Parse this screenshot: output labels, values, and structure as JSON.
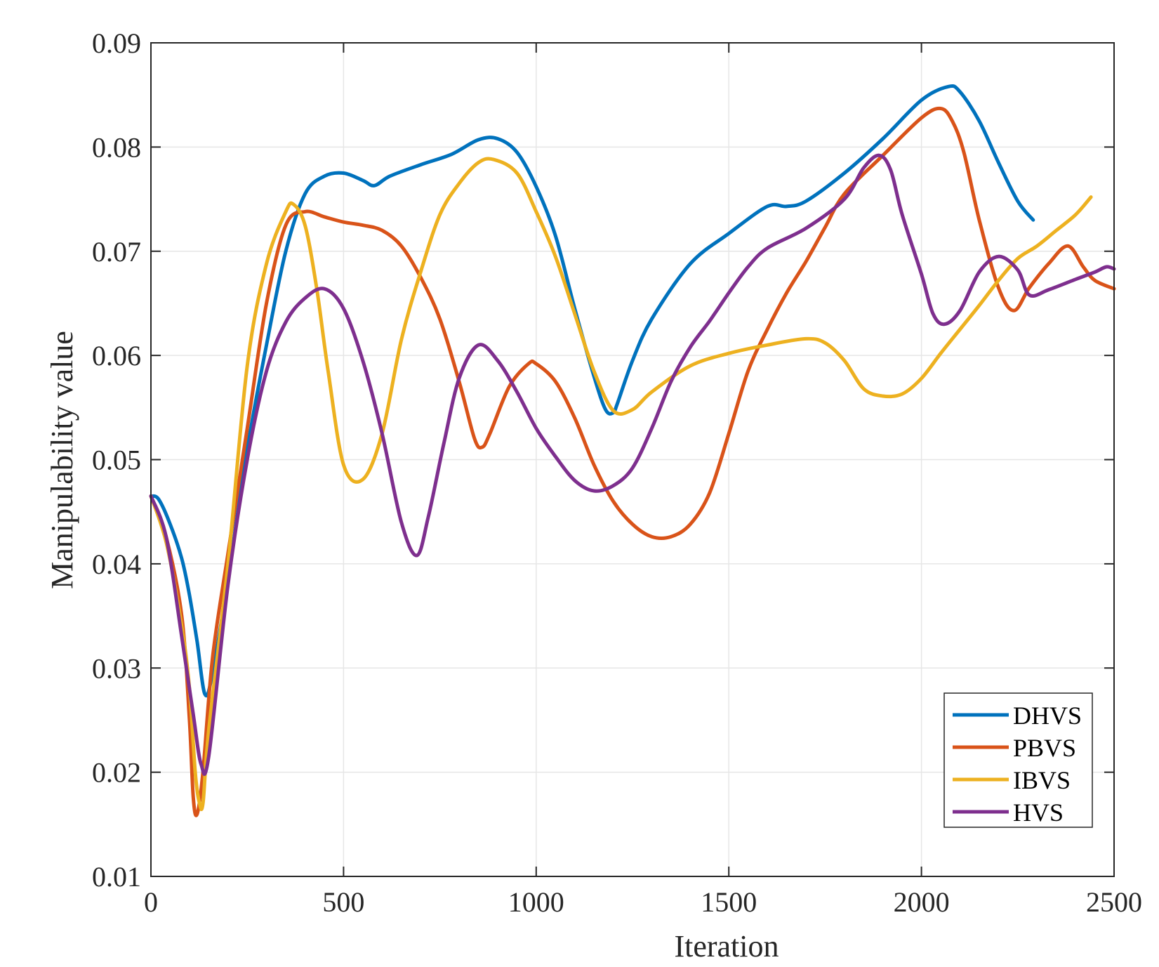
{
  "chart_data": {
    "type": "line",
    "title": "",
    "xlabel": "Iteration",
    "ylabel": "Manipulability value",
    "xlim": [
      0,
      2500
    ],
    "ylim": [
      0.01,
      0.09
    ],
    "xticks": [
      0,
      500,
      1000,
      1500,
      2000,
      2500
    ],
    "yticks": [
      0.01,
      0.02,
      0.03,
      0.04,
      0.05,
      0.06,
      0.07,
      0.08,
      0.09
    ],
    "xtick_labels": [
      "0",
      "500",
      "1000",
      "1500",
      "2000",
      "2500"
    ],
    "ytick_labels": [
      "0.01",
      "0.02",
      "0.03",
      "0.04",
      "0.05",
      "0.06",
      "0.07",
      "0.08",
      "0.09"
    ],
    "grid": true,
    "legend_position": "bottom-right",
    "series": [
      {
        "name": "DHVS",
        "color": "#0072BD",
        "points": [
          [
            0,
            0.0465
          ],
          [
            20,
            0.0462
          ],
          [
            50,
            0.0438
          ],
          [
            80,
            0.0405
          ],
          [
            100,
            0.037
          ],
          [
            120,
            0.0325
          ],
          [
            140,
            0.0275
          ],
          [
            160,
            0.0295
          ],
          [
            200,
            0.0385
          ],
          [
            250,
            0.051
          ],
          [
            300,
            0.061
          ],
          [
            350,
            0.07
          ],
          [
            400,
            0.0755
          ],
          [
            450,
            0.0772
          ],
          [
            500,
            0.0775
          ],
          [
            550,
            0.0768
          ],
          [
            580,
            0.0763
          ],
          [
            620,
            0.0772
          ],
          [
            700,
            0.0783
          ],
          [
            780,
            0.0793
          ],
          [
            850,
            0.0807
          ],
          [
            900,
            0.0808
          ],
          [
            950,
            0.0795
          ],
          [
            1000,
            0.0762
          ],
          [
            1050,
            0.0715
          ],
          [
            1100,
            0.0645
          ],
          [
            1150,
            0.058
          ],
          [
            1180,
            0.0548
          ],
          [
            1200,
            0.0545
          ],
          [
            1210,
            0.0553
          ],
          [
            1250,
            0.0595
          ],
          [
            1300,
            0.0635
          ],
          [
            1400,
            0.0688
          ],
          [
            1500,
            0.0717
          ],
          [
            1600,
            0.0743
          ],
          [
            1650,
            0.0743
          ],
          [
            1700,
            0.0748
          ],
          [
            1800,
            0.0775
          ],
          [
            1900,
            0.0808
          ],
          [
            2000,
            0.0845
          ],
          [
            2070,
            0.0858
          ],
          [
            2100,
            0.0853
          ],
          [
            2150,
            0.0825
          ],
          [
            2200,
            0.0785
          ],
          [
            2250,
            0.0748
          ],
          [
            2290,
            0.073
          ]
        ]
      },
      {
        "name": "PBVS",
        "color": "#D95319",
        "points": [
          [
            0,
            0.0465
          ],
          [
            40,
            0.0425
          ],
          [
            80,
            0.035
          ],
          [
            100,
            0.025
          ],
          [
            110,
            0.0175
          ],
          [
            120,
            0.016
          ],
          [
            135,
            0.02
          ],
          [
            160,
            0.031
          ],
          [
            200,
            0.041
          ],
          [
            250,
            0.053
          ],
          [
            300,
            0.065
          ],
          [
            350,
            0.0725
          ],
          [
            400,
            0.0738
          ],
          [
            450,
            0.0733
          ],
          [
            500,
            0.0728
          ],
          [
            550,
            0.0725
          ],
          [
            600,
            0.072
          ],
          [
            650,
            0.0705
          ],
          [
            700,
            0.0675
          ],
          [
            750,
            0.0635
          ],
          [
            800,
            0.0575
          ],
          [
            840,
            0.052
          ],
          [
            860,
            0.0512
          ],
          [
            880,
            0.0525
          ],
          [
            930,
            0.057
          ],
          [
            980,
            0.0592
          ],
          [
            1000,
            0.0592
          ],
          [
            1050,
            0.0575
          ],
          [
            1100,
            0.054
          ],
          [
            1150,
            0.0495
          ],
          [
            1200,
            0.046
          ],
          [
            1250,
            0.0438
          ],
          [
            1300,
            0.0426
          ],
          [
            1350,
            0.0426
          ],
          [
            1400,
            0.0438
          ],
          [
            1450,
            0.0468
          ],
          [
            1500,
            0.0525
          ],
          [
            1550,
            0.0585
          ],
          [
            1600,
            0.0625
          ],
          [
            1650,
            0.066
          ],
          [
            1700,
            0.069
          ],
          [
            1750,
            0.0723
          ],
          [
            1800,
            0.0755
          ],
          [
            1900,
            0.0792
          ],
          [
            2000,
            0.0828
          ],
          [
            2050,
            0.0837
          ],
          [
            2080,
            0.0825
          ],
          [
            2110,
            0.0795
          ],
          [
            2150,
            0.073
          ],
          [
            2200,
            0.0665
          ],
          [
            2240,
            0.0643
          ],
          [
            2280,
            0.0665
          ],
          [
            2330,
            0.0688
          ],
          [
            2380,
            0.0705
          ],
          [
            2420,
            0.0685
          ],
          [
            2450,
            0.0672
          ],
          [
            2500,
            0.0664
          ]
        ]
      },
      {
        "name": "IBVS",
        "color": "#EDB120",
        "points": [
          [
            0,
            0.0465
          ],
          [
            40,
            0.042
          ],
          [
            80,
            0.034
          ],
          [
            100,
            0.028
          ],
          [
            115,
            0.02
          ],
          [
            125,
            0.0172
          ],
          [
            135,
            0.017
          ],
          [
            150,
            0.024
          ],
          [
            200,
            0.04
          ],
          [
            250,
            0.059
          ],
          [
            300,
            0.0688
          ],
          [
            350,
            0.0738
          ],
          [
            370,
            0.0745
          ],
          [
            400,
            0.0725
          ],
          [
            430,
            0.0665
          ],
          [
            460,
            0.0585
          ],
          [
            500,
            0.0495
          ],
          [
            550,
            0.0481
          ],
          [
            600,
            0.0525
          ],
          [
            650,
            0.0615
          ],
          [
            700,
            0.068
          ],
          [
            750,
            0.0735
          ],
          [
            800,
            0.0765
          ],
          [
            850,
            0.0785
          ],
          [
            890,
            0.0788
          ],
          [
            950,
            0.0775
          ],
          [
            1000,
            0.0738
          ],
          [
            1050,
            0.0695
          ],
          [
            1100,
            0.064
          ],
          [
            1150,
            0.0585
          ],
          [
            1200,
            0.0547
          ],
          [
            1250,
            0.0548
          ],
          [
            1300,
            0.0565
          ],
          [
            1400,
            0.059
          ],
          [
            1500,
            0.0602
          ],
          [
            1600,
            0.061
          ],
          [
            1700,
            0.0616
          ],
          [
            1750,
            0.0612
          ],
          [
            1800,
            0.0595
          ],
          [
            1850,
            0.0568
          ],
          [
            1900,
            0.0561
          ],
          [
            1950,
            0.0563
          ],
          [
            2000,
            0.0578
          ],
          [
            2050,
            0.0602
          ],
          [
            2100,
            0.0625
          ],
          [
            2150,
            0.0648
          ],
          [
            2200,
            0.0672
          ],
          [
            2250,
            0.0693
          ],
          [
            2300,
            0.0705
          ],
          [
            2350,
            0.072
          ],
          [
            2400,
            0.0735
          ],
          [
            2440,
            0.0752
          ]
        ]
      },
      {
        "name": "HVS",
        "color": "#7E2F8E",
        "points": [
          [
            0,
            0.0465
          ],
          [
            40,
            0.0425
          ],
          [
            80,
            0.033
          ],
          [
            110,
            0.0255
          ],
          [
            130,
            0.0208
          ],
          [
            150,
            0.0215
          ],
          [
            200,
            0.038
          ],
          [
            250,
            0.05
          ],
          [
            300,
            0.0585
          ],
          [
            350,
            0.0632
          ],
          [
            400,
            0.0655
          ],
          [
            450,
            0.0664
          ],
          [
            500,
            0.0645
          ],
          [
            550,
            0.0595
          ],
          [
            600,
            0.0525
          ],
          [
            650,
            0.044
          ],
          [
            690,
            0.0408
          ],
          [
            720,
            0.0445
          ],
          [
            760,
            0.0515
          ],
          [
            800,
            0.0578
          ],
          [
            850,
            0.061
          ],
          [
            900,
            0.0595
          ],
          [
            950,
            0.0565
          ],
          [
            1000,
            0.053
          ],
          [
            1050,
            0.0503
          ],
          [
            1100,
            0.048
          ],
          [
            1150,
            0.047
          ],
          [
            1200,
            0.0475
          ],
          [
            1250,
            0.0492
          ],
          [
            1300,
            0.053
          ],
          [
            1350,
            0.0575
          ],
          [
            1400,
            0.0608
          ],
          [
            1450,
            0.0633
          ],
          [
            1500,
            0.066
          ],
          [
            1550,
            0.0685
          ],
          [
            1600,
            0.0703
          ],
          [
            1700,
            0.0722
          ],
          [
            1800,
            0.075
          ],
          [
            1850,
            0.078
          ],
          [
            1890,
            0.0792
          ],
          [
            1920,
            0.0778
          ],
          [
            1950,
            0.0735
          ],
          [
            2000,
            0.0678
          ],
          [
            2030,
            0.064
          ],
          [
            2060,
            0.063
          ],
          [
            2100,
            0.0643
          ],
          [
            2150,
            0.068
          ],
          [
            2200,
            0.0695
          ],
          [
            2250,
            0.0682
          ],
          [
            2280,
            0.0658
          ],
          [
            2330,
            0.0663
          ],
          [
            2400,
            0.0673
          ],
          [
            2450,
            0.068
          ],
          [
            2480,
            0.0685
          ],
          [
            2500,
            0.0683
          ]
        ]
      }
    ]
  }
}
